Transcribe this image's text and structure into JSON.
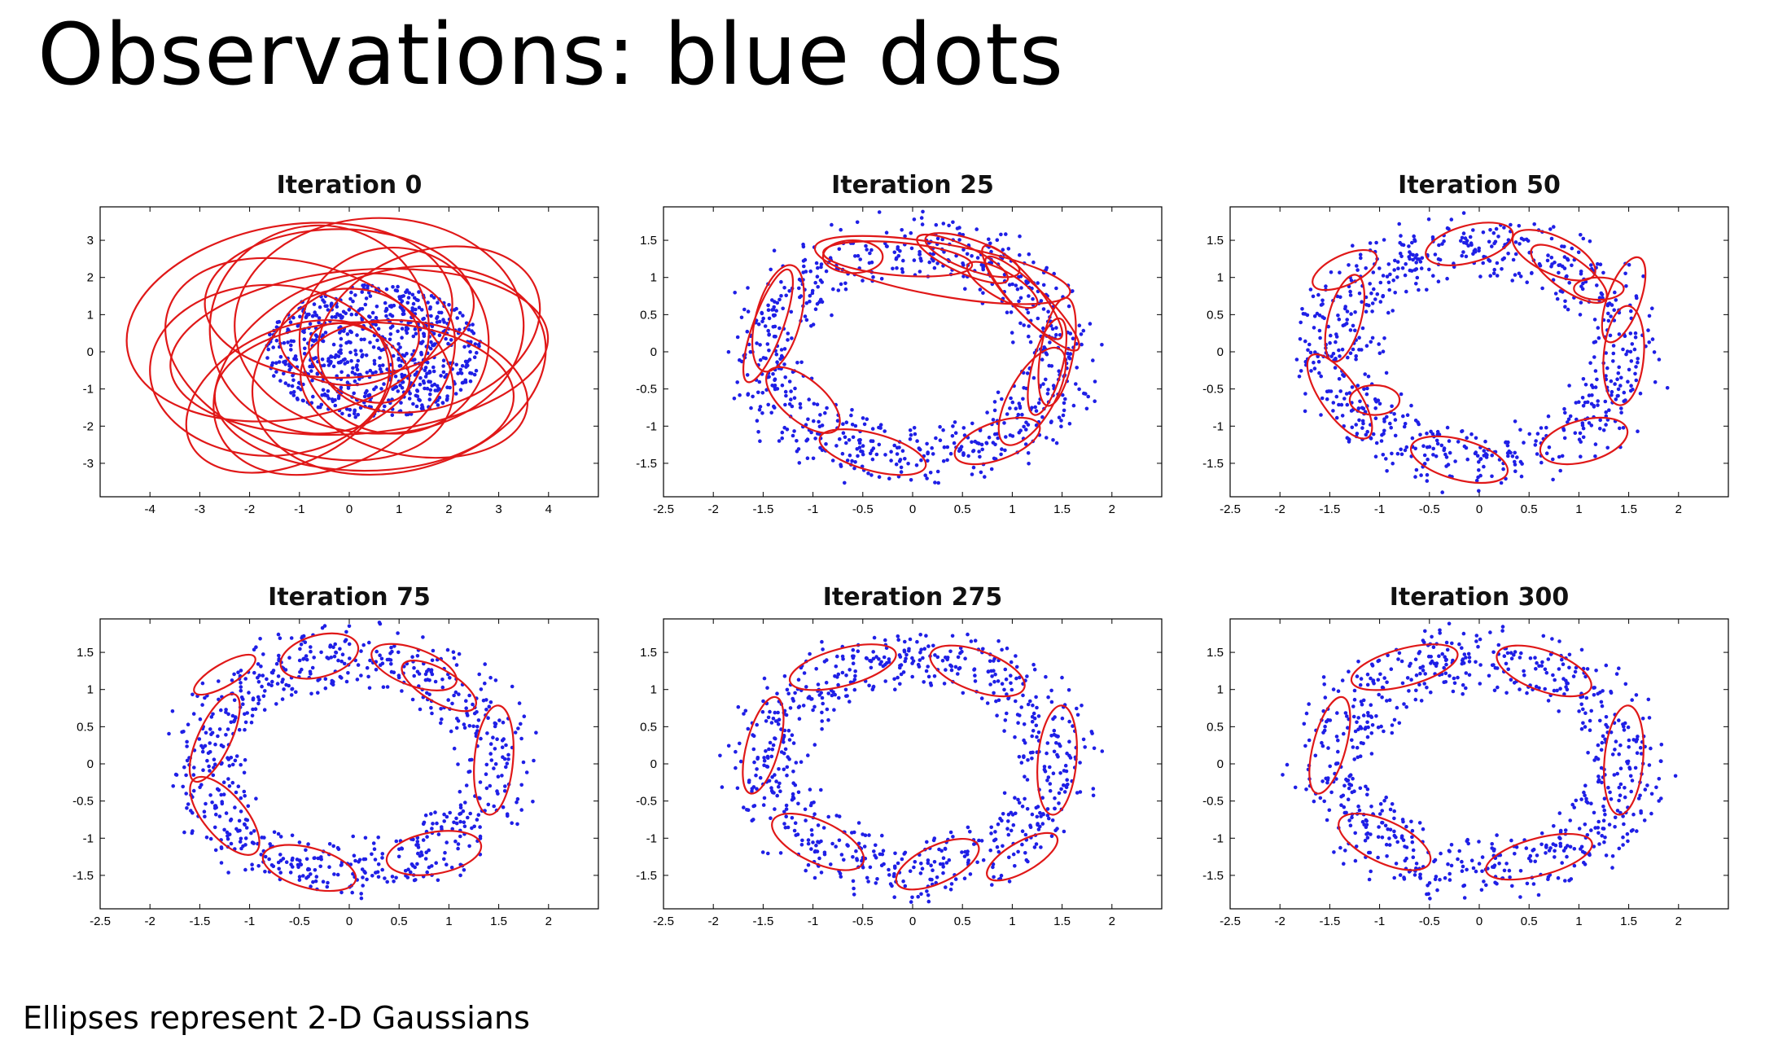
{
  "slide": {
    "title": "Observations: blue dots",
    "footnote": "Ellipses represent 2-D Gaussians"
  },
  "colors": {
    "points": "#1f1fe6",
    "ellipses": "#e01818",
    "axes": "#000000"
  },
  "chart_data": [
    {
      "type": "scatter",
      "title": "Iteration 0",
      "xlim": [
        -5,
        5
      ],
      "ylim": [
        -3.9,
        3.9
      ],
      "xticks": [
        -4,
        -3,
        -2,
        -1,
        0,
        1,
        2,
        3,
        4
      ],
      "yticks": [
        -3,
        -2,
        -1,
        0,
        1,
        2,
        3
      ],
      "points": {
        "shape": "disk",
        "center": [
          0.5,
          0
        ],
        "r_min": 0.0,
        "r_max": 1.9,
        "count": 700
      },
      "ellipses": [
        {
          "cx": -1.2,
          "cy": 0.8,
          "rx": 3.3,
          "ry": 2.6,
          "angle": 10
        },
        {
          "cx": 0.6,
          "cy": 0.7,
          "rx": 2.9,
          "ry": 2.9,
          "angle": 0
        },
        {
          "cx": -0.8,
          "cy": -0.2,
          "rx": 3.0,
          "ry": 2.5,
          "angle": -20
        },
        {
          "cx": 1.0,
          "cy": -0.5,
          "rx": 3.0,
          "ry": 2.7,
          "angle": 15
        },
        {
          "cx": -0.2,
          "cy": 1.3,
          "rx": 2.7,
          "ry": 2.0,
          "angle": 0
        },
        {
          "cx": 0.3,
          "cy": -1.2,
          "rx": 3.0,
          "ry": 2.0,
          "angle": 0
        },
        {
          "cx": -1.6,
          "cy": -0.5,
          "rx": 2.4,
          "ry": 2.3,
          "angle": 0
        },
        {
          "cx": 1.6,
          "cy": 0.6,
          "rx": 2.3,
          "ry": 2.1,
          "angle": 20
        },
        {
          "cx": 0.2,
          "cy": 0.0,
          "rx": 3.8,
          "ry": 2.2,
          "angle": 5
        },
        {
          "cx": -0.6,
          "cy": 0.6,
          "rx": 2.2,
          "ry": 2.8,
          "angle": 0
        },
        {
          "cx": 0.9,
          "cy": 0.3,
          "rx": 1.9,
          "ry": 2.5,
          "angle": -15
        },
        {
          "cx": -0.3,
          "cy": -0.6,
          "rx": 2.6,
          "ry": 2.4,
          "angle": 30
        },
        {
          "cx": 0.0,
          "cy": 0.4,
          "rx": 1.4,
          "ry": 1.3,
          "angle": 0
        },
        {
          "cx": 0.2,
          "cy": -0.3,
          "rx": 1.1,
          "ry": 0.9,
          "angle": -30
        },
        {
          "cx": 1.3,
          "cy": -1.0,
          "rx": 2.3,
          "ry": 1.8,
          "angle": -10
        },
        {
          "cx": -1.2,
          "cy": -1.2,
          "rx": 2.2,
          "ry": 1.8,
          "angle": 25
        }
      ]
    },
    {
      "type": "scatter",
      "title": "Iteration 25",
      "xlim": [
        -2.5,
        2.5
      ],
      "ylim": [
        -1.95,
        1.95
      ],
      "xticks": [
        -2.5,
        -2,
        -1.5,
        -1,
        -0.5,
        0,
        0.5,
        1,
        1.5,
        2
      ],
      "yticks": [
        -1.5,
        -1,
        -0.5,
        0,
        0.5,
        1,
        1.5
      ],
      "points": {
        "shape": "ring",
        "center": [
          0,
          0
        ],
        "r_min": 0.95,
        "r_max": 2.0,
        "count": 750
      },
      "ellipses": [
        {
          "cx": -1.45,
          "cy": 0.35,
          "rx": 0.6,
          "ry": 0.2,
          "angle": 70
        },
        {
          "cx": -1.35,
          "cy": 0.45,
          "rx": 0.55,
          "ry": 0.3,
          "angle": 75
        },
        {
          "cx": -1.1,
          "cy": -0.65,
          "rx": 0.45,
          "ry": 0.28,
          "angle": -40
        },
        {
          "cx": -0.4,
          "cy": -1.35,
          "rx": 0.55,
          "ry": 0.25,
          "angle": -15
        },
        {
          "cx": 0.85,
          "cy": -1.2,
          "rx": 0.45,
          "ry": 0.25,
          "angle": 20
        },
        {
          "cx": 1.45,
          "cy": 0.0,
          "rx": 0.55,
          "ry": 0.22,
          "angle": 80
        },
        {
          "cx": 1.35,
          "cy": -0.2,
          "rx": 0.5,
          "ry": 0.2,
          "angle": 75
        },
        {
          "cx": 1.2,
          "cy": -0.6,
          "rx": 0.55,
          "ry": 0.3,
          "angle": 60
        },
        {
          "cx": 1.1,
          "cy": 0.8,
          "rx": 0.6,
          "ry": 0.2,
          "angle": -50
        },
        {
          "cx": 1.2,
          "cy": 0.65,
          "rx": 0.65,
          "ry": 0.2,
          "angle": -45
        },
        {
          "cx": 0.6,
          "cy": 1.3,
          "rx": 0.5,
          "ry": 0.2,
          "angle": -20
        },
        {
          "cx": 0.5,
          "cy": 1.25,
          "rx": 0.5,
          "ry": 0.18,
          "angle": -25
        },
        {
          "cx": -0.15,
          "cy": 1.25,
          "rx": 0.75,
          "ry": 0.22,
          "angle": -5
        },
        {
          "cx": -0.6,
          "cy": 1.28,
          "rx": 0.3,
          "ry": 0.22,
          "angle": 0
        },
        {
          "cx": 0.3,
          "cy": 1.1,
          "rx": 1.3,
          "ry": 0.35,
          "angle": -10
        },
        {
          "cx": 0.9,
          "cy": 0.9,
          "rx": 0.4,
          "ry": 0.18,
          "angle": -30
        }
      ]
    },
    {
      "type": "scatter",
      "title": "Iteration 50",
      "xlim": [
        -2.5,
        2.5
      ],
      "ylim": [
        -1.95,
        1.95
      ],
      "xticks": [
        -2.5,
        -2,
        -1.5,
        -1,
        -0.5,
        0,
        0.5,
        1,
        1.5,
        2
      ],
      "yticks": [
        -1.5,
        -1,
        -0.5,
        0,
        0.5,
        1,
        1.5
      ],
      "points": {
        "shape": "ring",
        "center": [
          0,
          0
        ],
        "r_min": 0.95,
        "r_max": 2.0,
        "count": 750
      },
      "ellipses": [
        {
          "cx": -1.35,
          "cy": 1.1,
          "rx": 0.35,
          "ry": 0.2,
          "angle": 25
        },
        {
          "cx": -1.35,
          "cy": 0.45,
          "rx": 0.45,
          "ry": 0.22,
          "angle": 75
        },
        {
          "cx": -1.4,
          "cy": -0.6,
          "rx": 0.5,
          "ry": 0.25,
          "angle": -55
        },
        {
          "cx": -1.05,
          "cy": -0.65,
          "rx": 0.25,
          "ry": 0.2,
          "angle": 0
        },
        {
          "cx": -0.2,
          "cy": -1.45,
          "rx": 0.5,
          "ry": 0.27,
          "angle": -15
        },
        {
          "cx": 1.05,
          "cy": -1.2,
          "rx": 0.45,
          "ry": 0.28,
          "angle": 15
        },
        {
          "cx": 1.45,
          "cy": -0.05,
          "rx": 0.5,
          "ry": 0.27,
          "angle": 85
        },
        {
          "cx": 1.45,
          "cy": 0.7,
          "rx": 0.45,
          "ry": 0.22,
          "angle": 70
        },
        {
          "cx": 1.2,
          "cy": 0.85,
          "rx": 0.25,
          "ry": 0.15,
          "angle": 0
        },
        {
          "cx": 0.75,
          "cy": 1.3,
          "rx": 0.45,
          "ry": 0.25,
          "angle": -25
        },
        {
          "cx": 0.9,
          "cy": 1.05,
          "rx": 0.45,
          "ry": 0.22,
          "angle": -35
        },
        {
          "cx": -0.1,
          "cy": 1.45,
          "rx": 0.45,
          "ry": 0.25,
          "angle": 15
        }
      ]
    },
    {
      "type": "scatter",
      "title": "Iteration 75",
      "xlim": [
        -2.5,
        2.5
      ],
      "ylim": [
        -1.95,
        1.95
      ],
      "xticks": [
        -2.5,
        -2,
        -1.5,
        -1,
        -0.5,
        0,
        0.5,
        1,
        1.5,
        2
      ],
      "yticks": [
        -1.5,
        -1,
        -0.5,
        0,
        0.5,
        1,
        1.5
      ],
      "points": {
        "shape": "ring",
        "center": [
          0,
          0
        ],
        "r_min": 0.95,
        "r_max": 2.0,
        "count": 750
      },
      "ellipses": [
        {
          "cx": -1.25,
          "cy": 1.2,
          "rx": 0.35,
          "ry": 0.15,
          "angle": 30
        },
        {
          "cx": -1.35,
          "cy": 0.35,
          "rx": 0.48,
          "ry": 0.22,
          "angle": 65
        },
        {
          "cx": -1.25,
          "cy": -0.7,
          "rx": 0.48,
          "ry": 0.28,
          "angle": -50
        },
        {
          "cx": -0.4,
          "cy": -1.4,
          "rx": 0.48,
          "ry": 0.27,
          "angle": -15
        },
        {
          "cx": 0.85,
          "cy": -1.2,
          "rx": 0.48,
          "ry": 0.28,
          "angle": 10
        },
        {
          "cx": 1.45,
          "cy": 0.05,
          "rx": 0.55,
          "ry": 0.26,
          "angle": 85
        },
        {
          "cx": 0.65,
          "cy": 1.3,
          "rx": 0.45,
          "ry": 0.25,
          "angle": -20
        },
        {
          "cx": 0.9,
          "cy": 1.05,
          "rx": 0.42,
          "ry": 0.22,
          "angle": -30
        },
        {
          "cx": -0.3,
          "cy": 1.45,
          "rx": 0.4,
          "ry": 0.28,
          "angle": 15
        }
      ]
    },
    {
      "type": "scatter",
      "title": "Iteration 275",
      "xlim": [
        -2.5,
        2.5
      ],
      "ylim": [
        -1.95,
        1.95
      ],
      "xticks": [
        -2.5,
        -2,
        -1.5,
        -1,
        -0.5,
        0,
        0.5,
        1,
        1.5,
        2
      ],
      "yticks": [
        -1.5,
        -1,
        -0.5,
        0,
        0.5,
        1,
        1.5
      ],
      "points": {
        "shape": "ring",
        "center": [
          0,
          0
        ],
        "r_min": 0.95,
        "r_max": 2.0,
        "count": 750
      },
      "ellipses": [
        {
          "cx": -0.7,
          "cy": 1.3,
          "rx": 0.55,
          "ry": 0.25,
          "angle": 15
        },
        {
          "cx": 0.65,
          "cy": 1.25,
          "rx": 0.5,
          "ry": 0.27,
          "angle": -20
        },
        {
          "cx": 1.45,
          "cy": 0.05,
          "rx": 0.55,
          "ry": 0.26,
          "angle": 85
        },
        {
          "cx": 1.1,
          "cy": -1.25,
          "rx": 0.4,
          "ry": 0.2,
          "angle": 30
        },
        {
          "cx": 0.25,
          "cy": -1.35,
          "rx": 0.45,
          "ry": 0.25,
          "angle": 25
        },
        {
          "cx": -0.95,
          "cy": -1.05,
          "rx": 0.5,
          "ry": 0.28,
          "angle": -25
        },
        {
          "cx": -1.5,
          "cy": 0.25,
          "rx": 0.5,
          "ry": 0.22,
          "angle": 75
        }
      ]
    },
    {
      "type": "scatter",
      "title": "Iteration 300",
      "xlim": [
        -2.5,
        2.5
      ],
      "ylim": [
        -1.95,
        1.95
      ],
      "xticks": [
        -2.5,
        -2,
        -1.5,
        -1,
        -0.5,
        0,
        0.5,
        1,
        1.5,
        2
      ],
      "yticks": [
        -1.5,
        -1,
        -0.5,
        0,
        0.5,
        1,
        1.5
      ],
      "points": {
        "shape": "ring",
        "center": [
          0,
          0
        ],
        "r_min": 0.95,
        "r_max": 2.0,
        "count": 750
      },
      "ellipses": [
        {
          "cx": -0.75,
          "cy": 1.3,
          "rx": 0.55,
          "ry": 0.25,
          "angle": 15
        },
        {
          "cx": 0.65,
          "cy": 1.25,
          "rx": 0.5,
          "ry": 0.27,
          "angle": -20
        },
        {
          "cx": 1.45,
          "cy": 0.05,
          "rx": 0.55,
          "ry": 0.26,
          "angle": 85
        },
        {
          "cx": 0.6,
          "cy": -1.25,
          "rx": 0.55,
          "ry": 0.25,
          "angle": 15
        },
        {
          "cx": -0.95,
          "cy": -1.05,
          "rx": 0.5,
          "ry": 0.28,
          "angle": -25
        },
        {
          "cx": -1.5,
          "cy": 0.25,
          "rx": 0.5,
          "ry": 0.22,
          "angle": 75
        }
      ]
    }
  ]
}
